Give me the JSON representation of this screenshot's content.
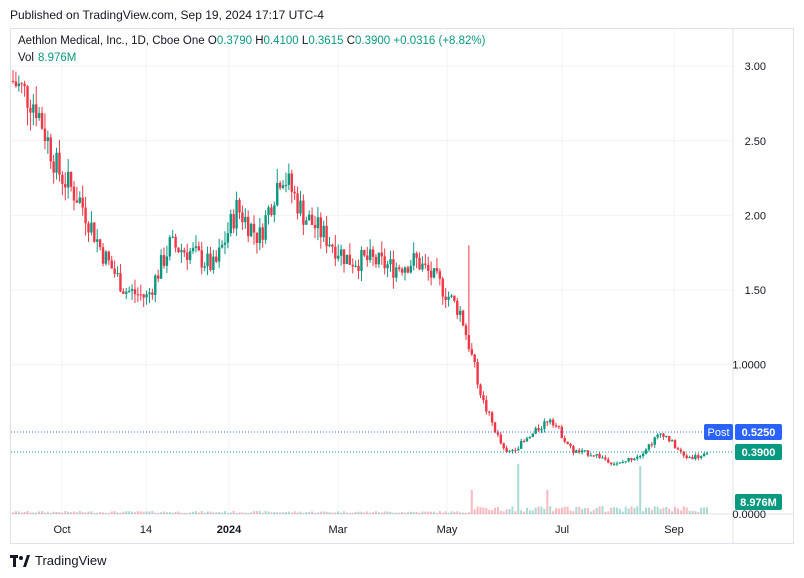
{
  "header": {
    "published": "Published on TradingView.com, Sep 19, 2024 17:17 UTC-4"
  },
  "legend": {
    "title": "Aethlon Medical, Inc., 1D, Cboe One",
    "o_label": "O",
    "o": "0.3790",
    "h_label": "H",
    "h": "0.4100",
    "l_label": "L",
    "l": "0.3615",
    "c_label": "C",
    "c": "0.3900",
    "change": "+0.0316 (+8.82%)",
    "vol_label": "Vol",
    "vol": "8.976M"
  },
  "footer": {
    "brand": "TradingView",
    "logo_icon": "tradingview-logo-icon"
  },
  "colors": {
    "up": "#089981",
    "down": "#f23645",
    "post": "#2962ff"
  },
  "chart_data": {
    "type": "candlestick",
    "y_axis_ticks": [
      "3.00",
      "2.50",
      "2.00",
      "1.50",
      "1.0000",
      "0.0000"
    ],
    "y_tick_values": [
      3.0,
      2.5,
      2.0,
      1.5,
      1.0,
      0.0
    ],
    "ylim": [
      0.0,
      3.0
    ],
    "x_axis_ticks": [
      "Oct",
      "14",
      "2024",
      "Mar",
      "May",
      "Jul",
      "Sep"
    ],
    "price_labels": [
      {
        "name": "Post",
        "value": "0.5250",
        "color": "#2962ff"
      },
      {
        "name": "",
        "value": "0.3900",
        "color": "#089981"
      },
      {
        "name": "",
        "value": "8.976M",
        "color": "#089981"
      }
    ],
    "series": [
      {
        "name": "Price",
        "description": "daily candles, approximate close path",
        "approx_close_path": [
          2.9,
          2.75,
          2.3,
          2.1,
          1.75,
          1.5,
          1.45,
          1.8,
          1.75,
          1.65,
          2.05,
          1.85,
          2.3,
          2.0,
          1.85,
          1.7,
          1.7,
          1.65,
          1.7,
          1.55,
          1.35,
          0.75,
          0.4,
          0.5,
          0.65,
          0.42,
          0.4,
          0.33,
          0.4,
          0.55,
          0.38,
          0.39
        ]
      }
    ]
  }
}
